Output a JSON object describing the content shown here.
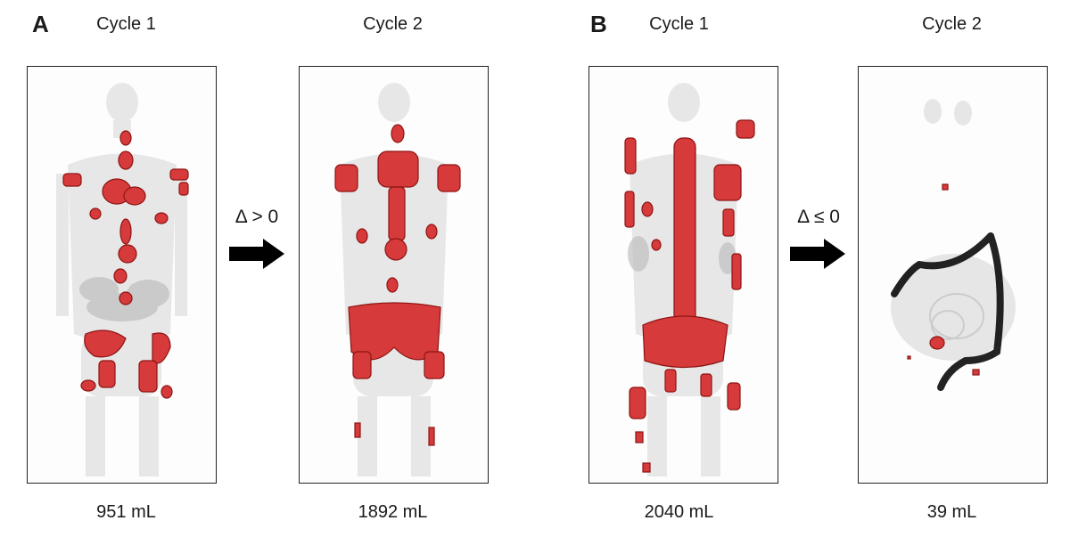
{
  "panels": {
    "a": {
      "letter": "A",
      "cycle1_title": "Cycle 1",
      "cycle2_title": "Cycle 2",
      "cycle1_volume": "951 mL",
      "cycle2_volume": "1892 mL",
      "change_label": "Δ > 0"
    },
    "b": {
      "letter": "B",
      "cycle1_title": "Cycle 1",
      "cycle2_title": "Cycle 2",
      "cycle1_volume": "2040 mL",
      "cycle2_volume": "39 mL",
      "change_label": "Δ ≤ 0"
    }
  },
  "colors": {
    "lesion": "#d63a3a",
    "lesion_dark": "#8e1414",
    "body_shade": "#c8c8c8",
    "arrow": "#000000"
  },
  "icons": {
    "arrow": "right-arrow-icon"
  }
}
